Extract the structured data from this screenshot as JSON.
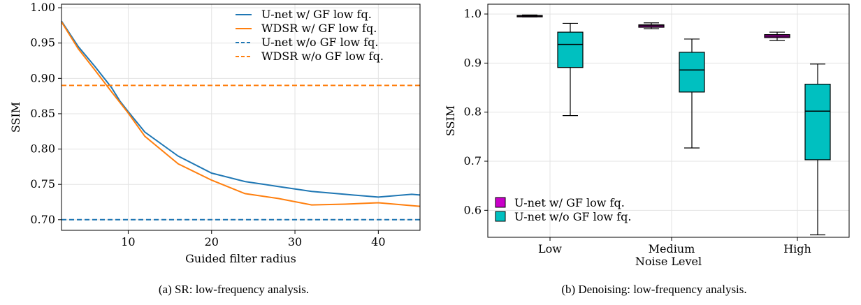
{
  "chart_data": [
    {
      "type": "line",
      "caption": "(a) SR: low-frequency analysis.",
      "xlabel": "Guided filter radius",
      "ylabel": "SSIM",
      "xlim": [
        2,
        45
      ],
      "ylim": [
        0.685,
        1.005
      ],
      "xticks": [
        10,
        20,
        30,
        40
      ],
      "yticks": [
        0.7,
        0.75,
        0.8,
        0.85,
        0.9,
        0.95,
        1.0
      ],
      "ytick_labels": [
        "0.70",
        "0.75",
        "0.80",
        "0.85",
        "0.90",
        "0.95",
        "1.00"
      ],
      "grid": true,
      "legend_position": "top-right",
      "series": [
        {
          "name": "U-net w/ GF low fq.",
          "color": "#1f77b4",
          "style": "solid",
          "x": [
            2,
            4,
            6,
            8,
            9,
            10,
            12,
            16,
            20,
            24,
            28,
            32,
            36,
            40,
            44,
            45
          ],
          "y": [
            0.981,
            0.945,
            0.917,
            0.887,
            0.868,
            0.853,
            0.824,
            0.79,
            0.766,
            0.754,
            0.747,
            0.74,
            0.736,
            0.732,
            0.736,
            0.735
          ]
        },
        {
          "name": "WDSR w/ GF low fq.",
          "color": "#ff7f0e",
          "style": "solid",
          "x": [
            2,
            4,
            6,
            8,
            10,
            12,
            16,
            20,
            24,
            28,
            32,
            36,
            40,
            44,
            45
          ],
          "y": [
            0.98,
            0.942,
            0.912,
            0.881,
            0.851,
            0.818,
            0.779,
            0.756,
            0.737,
            0.73,
            0.721,
            0.722,
            0.724,
            0.72,
            0.719
          ]
        },
        {
          "name": "U-net  w/o GF low fq.",
          "color": "#1f77b4",
          "style": "dashed",
          "x": [
            2,
            45
          ],
          "y": [
            0.7,
            0.7
          ]
        },
        {
          "name": "WDSR  w/o GF low fq.",
          "color": "#ff7f0e",
          "style": "dashed",
          "x": [
            2,
            45
          ],
          "y": [
            0.89,
            0.89
          ]
        }
      ]
    },
    {
      "type": "box",
      "caption": "(b) Denoising: low-frequency analysis.",
      "xlabel": "Noise Level",
      "ylabel": "SSIM",
      "categories": [
        "Low",
        "Medium",
        "High"
      ],
      "ylim": [
        0.545,
        1.02
      ],
      "yticks": [
        0.6,
        0.7,
        0.8,
        0.9,
        1.0
      ],
      "ytick_labels": [
        "0.6",
        "0.7",
        "0.8",
        "0.9",
        "1.0"
      ],
      "grid": true,
      "legend_position": "bottom-left",
      "series": [
        {
          "name": "U-net w/ GF low fq.",
          "color": "#c800c8",
          "boxes": [
            {
              "whislo": 0.994,
              "q1": 0.995,
              "med": 0.996,
              "q3": 0.997,
              "whishi": 0.998
            },
            {
              "whislo": 0.97,
              "q1": 0.973,
              "med": 0.976,
              "q3": 0.978,
              "whishi": 0.982
            },
            {
              "whislo": 0.946,
              "q1": 0.952,
              "med": 0.955,
              "q3": 0.958,
              "whishi": 0.963
            }
          ]
        },
        {
          "name": "U-net w/o GF low fq.",
          "color": "#00c0c0",
          "boxes": [
            {
              "whislo": 0.793,
              "q1": 0.891,
              "med": 0.938,
              "q3": 0.963,
              "whishi": 0.981
            },
            {
              "whislo": 0.727,
              "q1": 0.841,
              "med": 0.886,
              "q3": 0.922,
              "whishi": 0.949
            },
            {
              "whislo": 0.55,
              "q1": 0.703,
              "med": 0.802,
              "q3": 0.857,
              "whishi": 0.898
            }
          ]
        }
      ]
    }
  ]
}
